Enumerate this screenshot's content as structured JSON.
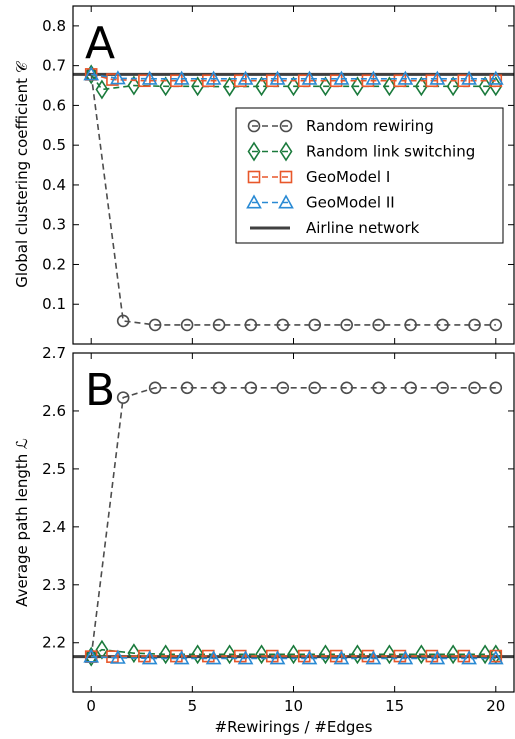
{
  "colors": {
    "random_rewiring": "#4d4d4d",
    "random_link_switching": "#1a7a3c",
    "geomodel_1": "#e8572a",
    "geomodel_2": "#2a8ad4",
    "airline_network": "#404040"
  },
  "chart_data": [
    {
      "type": "line",
      "panel_label": "A",
      "ylabel": "Global clustering coefficient 𝒞",
      "xlabel": "",
      "xlim": [
        -0.9,
        20.9
      ],
      "ylim": [
        0.0,
        0.85
      ],
      "xticks": [
        0,
        5,
        10,
        15,
        20
      ],
      "yticks": [
        0.1,
        0.2,
        0.3,
        0.4,
        0.5,
        0.6,
        0.7,
        0.8
      ],
      "ytick_labels": [
        "0.1",
        "0.2",
        "0.3",
        "0.4",
        "0.5",
        "0.6",
        "0.7",
        "0.8"
      ],
      "legend_position": "right",
      "reference_line": {
        "name": "Airline network",
        "value": 0.678
      },
      "series": [
        {
          "name": "Random rewiring",
          "marker": "circle",
          "color_key": "random_rewiring",
          "x": [
            0,
            1.58,
            3.16,
            4.74,
            6.32,
            7.89,
            9.47,
            11.05,
            12.63,
            14.21,
            15.79,
            17.37,
            18.95,
            20
          ],
          "y": [
            0.678,
            0.058,
            0.048,
            0.048,
            0.048,
            0.048,
            0.048,
            0.048,
            0.048,
            0.048,
            0.048,
            0.048,
            0.048,
            0.048
          ]
        },
        {
          "name": "Random link switching",
          "marker": "diamond",
          "color_key": "random_link_switching",
          "x": [
            0,
            0.53,
            2.11,
            3.68,
            5.26,
            6.84,
            8.42,
            10.0,
            11.58,
            13.16,
            14.74,
            16.32,
            17.89,
            19.47,
            20
          ],
          "y": [
            0.678,
            0.64,
            0.65,
            0.648,
            0.648,
            0.647,
            0.648,
            0.648,
            0.648,
            0.648,
            0.648,
            0.648,
            0.648,
            0.648,
            0.648
          ]
        },
        {
          "name": "GeoModel I",
          "marker": "square",
          "color_key": "geomodel_1",
          "x": [
            0,
            1.05,
            2.63,
            4.21,
            5.79,
            7.37,
            8.95,
            10.53,
            12.11,
            13.68,
            15.26,
            16.84,
            18.42,
            20
          ],
          "y": [
            0.678,
            0.665,
            0.662,
            0.662,
            0.662,
            0.662,
            0.662,
            0.662,
            0.662,
            0.662,
            0.662,
            0.662,
            0.662,
            0.662
          ]
        },
        {
          "name": "GeoModel II",
          "marker": "triangle",
          "color_key": "geomodel_2",
          "x": [
            0,
            1.32,
            2.89,
            4.47,
            6.05,
            7.63,
            9.21,
            10.79,
            12.37,
            13.95,
            15.53,
            17.11,
            18.68,
            20
          ],
          "y": [
            0.678,
            0.668,
            0.667,
            0.667,
            0.667,
            0.667,
            0.667,
            0.667,
            0.667,
            0.667,
            0.667,
            0.667,
            0.667,
            0.667
          ]
        }
      ]
    },
    {
      "type": "line",
      "panel_label": "B",
      "ylabel": "Average path length ℒ",
      "xlabel": "#Rewirings / #Edges",
      "xlim": [
        -0.9,
        20.9
      ],
      "ylim": [
        2.115,
        2.7
      ],
      "xticks": [
        0,
        5,
        10,
        15,
        20
      ],
      "yticks": [
        2.2,
        2.3,
        2.4,
        2.5,
        2.6,
        2.7
      ],
      "ytick_labels": [
        "2.2",
        "2.3",
        "2.4",
        "2.5",
        "2.6",
        "2.7"
      ],
      "reference_line": {
        "name": "Airline network",
        "value": 2.176
      },
      "series": [
        {
          "name": "Random rewiring",
          "marker": "circle",
          "color_key": "random_rewiring",
          "x": [
            0,
            1.58,
            3.16,
            4.74,
            6.32,
            7.89,
            9.47,
            11.05,
            12.63,
            14.21,
            15.79,
            17.37,
            18.95,
            20
          ],
          "y": [
            2.176,
            2.623,
            2.64,
            2.64,
            2.64,
            2.64,
            2.64,
            2.64,
            2.64,
            2.64,
            2.64,
            2.64,
            2.64,
            2.64
          ]
        },
        {
          "name": "Random link switching",
          "marker": "diamond",
          "color_key": "random_link_switching",
          "x": [
            0,
            0.53,
            2.11,
            3.68,
            5.26,
            6.84,
            8.42,
            10.0,
            11.58,
            13.16,
            14.74,
            16.32,
            17.89,
            19.47,
            20
          ],
          "y": [
            2.176,
            2.188,
            2.182,
            2.18,
            2.18,
            2.18,
            2.18,
            2.18,
            2.18,
            2.18,
            2.18,
            2.18,
            2.18,
            2.18,
            2.18
          ]
        },
        {
          "name": "GeoModel I",
          "marker": "square",
          "color_key": "geomodel_1",
          "x": [
            0,
            1.05,
            2.63,
            4.21,
            5.79,
            7.37,
            8.95,
            10.53,
            12.11,
            13.68,
            15.26,
            16.84,
            18.42,
            20
          ],
          "y": [
            2.176,
            2.176,
            2.177,
            2.177,
            2.177,
            2.177,
            2.177,
            2.177,
            2.177,
            2.177,
            2.177,
            2.177,
            2.177,
            2.177
          ]
        },
        {
          "name": "GeoModel II",
          "marker": "triangle",
          "color_key": "geomodel_2",
          "x": [
            0,
            1.32,
            2.89,
            4.47,
            6.05,
            7.63,
            9.21,
            10.79,
            12.37,
            13.95,
            15.53,
            17.11,
            18.68,
            20
          ],
          "y": [
            2.176,
            2.174,
            2.173,
            2.173,
            2.173,
            2.173,
            2.173,
            2.173,
            2.173,
            2.173,
            2.173,
            2.173,
            2.173,
            2.173
          ]
        }
      ]
    }
  ]
}
